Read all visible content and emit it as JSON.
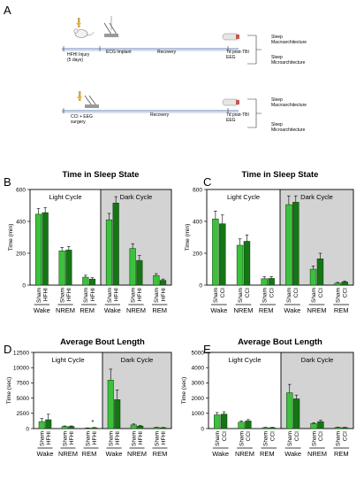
{
  "panel_labels": [
    "A",
    "B",
    "C",
    "D",
    "E"
  ],
  "timeline": {
    "top": {
      "stages": [
        "HFHI Injury\n(5 days)",
        "ECG Implant",
        "Recovery",
        "7d post-TBI\nEEG"
      ],
      "outcomes": [
        "Sleep\nMacroarchitecture",
        "Sleep\nMicroarchitecture"
      ]
    },
    "bottom": {
      "stages": [
        "CCI + EEG\nsurgery",
        "Recovery",
        "7d post-TBI\nEEG"
      ],
      "outcomes": [
        "Sleep\nMacroarchitecture",
        "Sleep\nMicroarchitecture"
      ]
    }
  },
  "colors": {
    "sham": "#3cc13c",
    "injury": "#157515",
    "dark_bg": "#d3d3d3",
    "bar_stroke": "#0a3a0a"
  },
  "chart_data": [
    {
      "type": "bar",
      "panel": "B",
      "title": "Time in Sleep State",
      "ylabel": "Time (min)",
      "ylim": [
        0,
        600
      ],
      "yticks": [
        0,
        200,
        400,
        600
      ],
      "regions": [
        "Light Cycle",
        "Dark Cycle"
      ],
      "states": [
        "Wake",
        "NREM",
        "REM"
      ],
      "groups": [
        "Sham",
        "HFHI"
      ],
      "series": [
        {
          "name": "Sham",
          "light": [
            445,
            215,
            50
          ],
          "dark": [
            410,
            230,
            60
          ]
        },
        {
          "name": "HFHI",
          "light": [
            455,
            220,
            38
          ],
          "dark": [
            515,
            155,
            30
          ]
        }
      ],
      "errors": [
        {
          "light": [
            35,
            22,
            12
          ],
          "dark": [
            40,
            30,
            12
          ]
        },
        {
          "light": [
            30,
            22,
            8
          ],
          "dark": [
            40,
            30,
            8
          ]
        }
      ],
      "annotation": ""
    },
    {
      "type": "bar",
      "panel": "C",
      "title": "Time in Sleep State",
      "ylabel": "Time (min)",
      "ylim": [
        0,
        600
      ],
      "yticks": [
        0,
        200,
        400,
        600
      ],
      "regions": [
        "Light Cycle",
        "Dark Cycle"
      ],
      "states": [
        "Wake",
        "NREM",
        "REM"
      ],
      "groups": [
        "Sham",
        "CCI"
      ],
      "series": [
        {
          "name": "Sham",
          "light": [
            415,
            250,
            40
          ],
          "dark": [
            505,
            100,
            12
          ]
        },
        {
          "name": "CCI",
          "light": [
            385,
            275,
            42
          ],
          "dark": [
            520,
            165,
            20
          ]
        }
      ],
      "errors": [
        {
          "light": [
            50,
            40,
            12
          ],
          "dark": [
            55,
            20,
            5
          ]
        },
        {
          "light": [
            55,
            40,
            12
          ],
          "dark": [
            40,
            35,
            5
          ]
        }
      ],
      "annotation": ""
    },
    {
      "type": "bar",
      "panel": "D",
      "title": "Average Bout Length",
      "ylabel": "Time (sec)",
      "ylim": [
        0,
        12500
      ],
      "yticks": [
        0,
        2500,
        5000,
        7500,
        10000,
        12500
      ],
      "regions": [
        "Light Cycle",
        "Dark Cycle"
      ],
      "states": [
        "Wake",
        "NREM",
        "REM"
      ],
      "groups": [
        "Sham",
        "HFHI"
      ],
      "series": [
        {
          "name": "Sham",
          "light": [
            1150,
            350,
            80
          ],
          "dark": [
            7950,
            600,
            170
          ]
        },
        {
          "name": "HFHI",
          "light": [
            1450,
            350,
            130
          ],
          "dark": [
            4750,
            400,
            140
          ]
        }
      ],
      "errors": [
        {
          "light": [
            500,
            80,
            30
          ],
          "dark": [
            1800,
            150,
            40
          ]
        },
        {
          "light": [
            900,
            80,
            50
          ],
          "dark": [
            1600,
            100,
            40
          ]
        }
      ],
      "annotation": "*"
    },
    {
      "type": "bar",
      "panel": "E",
      "title": "Average Bout Length",
      "ylabel": "Time (sec)",
      "ylim": [
        0,
        5000
      ],
      "yticks": [
        0,
        1000,
        2000,
        3000,
        4000,
        5000
      ],
      "regions": [
        "Light Cycle",
        "Dark Cycle"
      ],
      "states": [
        "Wake",
        "NREM",
        "REM"
      ],
      "groups": [
        "Sham",
        "CCI"
      ],
      "series": [
        {
          "name": "Sham",
          "light": [
            900,
            420,
            60
          ],
          "dark": [
            2350,
            330,
            70
          ]
        },
        {
          "name": "CCI",
          "light": [
            950,
            500,
            60
          ],
          "dark": [
            1950,
            450,
            60
          ]
        }
      ],
      "errors": [
        {
          "light": [
            150,
            90,
            20
          ],
          "dark": [
            550,
            60,
            20
          ]
        },
        {
          "light": [
            150,
            90,
            20
          ],
          "dark": [
            250,
            100,
            20
          ]
        }
      ],
      "annotation": ""
    }
  ]
}
